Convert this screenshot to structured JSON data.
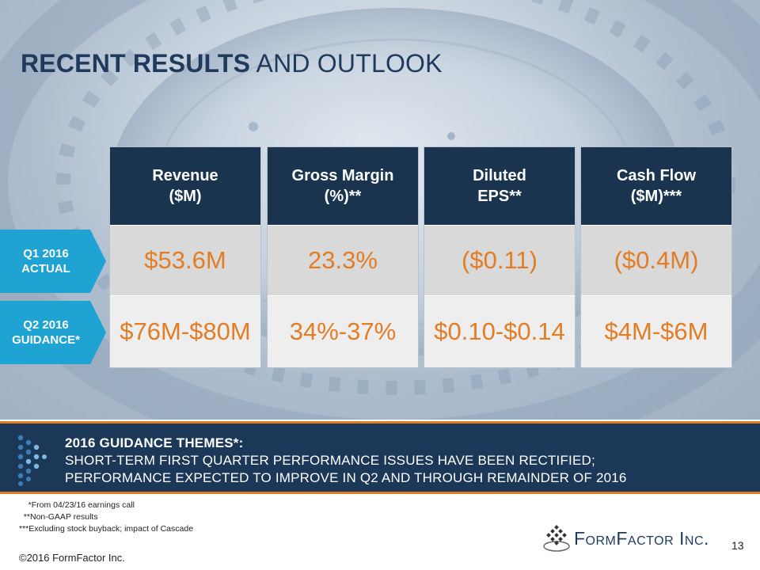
{
  "title": {
    "bold": "RECENT RESULTS",
    "light": " AND OUTLOOK"
  },
  "colors": {
    "navy": "#1a3450",
    "orange": "#e27d26",
    "cyan": "#1fa3d3"
  },
  "row_labels": [
    {
      "line1": "Q1 2016",
      "line2": "ACTUAL"
    },
    {
      "line1": "Q2 2016",
      "line2": "GUIDANCE*"
    }
  ],
  "columns": [
    {
      "head1": "Revenue",
      "head2": "($M)",
      "actual": "$53.6M",
      "guidance": "$76M-$80M"
    },
    {
      "head1": "Gross Margin",
      "head2": "(%)**",
      "actual": "23.3%",
      "guidance": "34%-37%"
    },
    {
      "head1": "Diluted",
      "head2": "EPS**",
      "actual": "($0.11)",
      "guidance": "$0.10-$0.14"
    },
    {
      "head1": "Cash Flow",
      "head2": "($M)***",
      "actual": "($0.4M)",
      "guidance": "$4M-$6M"
    }
  ],
  "banner": {
    "heading": "2016 GUIDANCE THEMES*:",
    "line1": "SHORT-TERM FIRST QUARTER PERFORMANCE ISSUES HAVE BEEN RECTIFIED;",
    "line2": "PERFORMANCE EXPECTED TO IMPROVE IN Q2 AND THROUGH REMAINDER OF 2016"
  },
  "footnotes": [
    "    *From 04/23/16 earnings call",
    "  **Non-GAAP results",
    "***Excluding stock buyback; impact of Cascade"
  ],
  "copyright": "©2016 FormFactor Inc.",
  "page_number": "13",
  "logo_text": "FormFactor Inc."
}
